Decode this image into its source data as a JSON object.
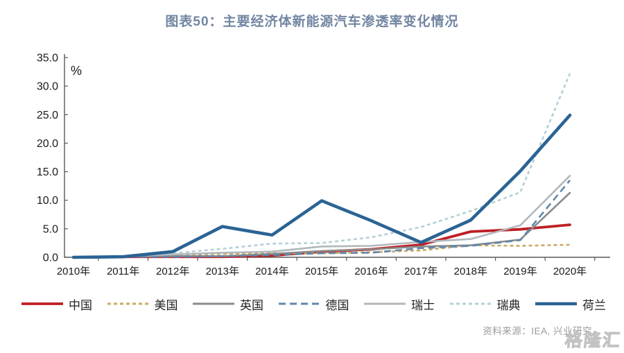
{
  "page": {
    "title": "图表50：主要经济体新能源汽车渗透率变化情况",
    "source_note": "资料来源：IEA, 兴业研究",
    "watermark": "格隆汇"
  },
  "colors": {
    "title": "#7286a2",
    "axis": "#595959",
    "tick_label": "#1a1a1a",
    "source_text": "#9b9b9b"
  },
  "chart_data": {
    "type": "line",
    "title": "图表50：主要经济体新能源汽车渗透率变化情况",
    "unit_label": "%",
    "categories": [
      "2010年",
      "2011年",
      "2012年",
      "2013年",
      "2014年",
      "2015年",
      "2016年",
      "2017年",
      "2018年",
      "2019年",
      "2020年"
    ],
    "ylim": [
      0,
      35
    ],
    "ytick_step": 5,
    "ytick_labels": [
      "0.0",
      "5.0",
      "10.0",
      "15.0",
      "20.0",
      "25.0",
      "30.0",
      "35.0"
    ],
    "grid": false,
    "legend_position": "bottom",
    "series": [
      {
        "id": "china",
        "name": "中国",
        "color": "#bf1e24",
        "style": "solid",
        "width": 3.8,
        "values": [
          0.0,
          0.1,
          0.1,
          0.1,
          0.3,
          1.0,
          1.4,
          2.2,
          4.5,
          4.9,
          5.7
        ]
      },
      {
        "id": "usa",
        "name": "美国",
        "color": "#c9aa63",
        "style": "short-dash",
        "width": 2.6,
        "values": [
          0.0,
          0.2,
          0.4,
          0.6,
          0.7,
          0.7,
          0.9,
          1.2,
          2.1,
          2.0,
          2.2
        ]
      },
      {
        "id": "uk",
        "name": "英国",
        "color": "#8b8b8b",
        "style": "solid",
        "width": 2.6,
        "values": [
          0.0,
          0.1,
          0.2,
          0.2,
          0.6,
          1.1,
          1.4,
          1.9,
          2.1,
          3.1,
          11.3
        ]
      },
      {
        "id": "germany",
        "name": "德国",
        "color": "#5f87ab",
        "style": "long-dash",
        "width": 2.6,
        "values": [
          0.0,
          0.1,
          0.1,
          0.2,
          0.4,
          0.7,
          0.8,
          1.6,
          2.0,
          3.0,
          13.5
        ]
      },
      {
        "id": "switzerland",
        "name": "瑞士",
        "color": "#b1b7bb",
        "style": "solid",
        "width": 2.6,
        "values": [
          0.0,
          0.2,
          0.5,
          0.8,
          1.0,
          1.9,
          2.0,
          2.7,
          3.2,
          5.6,
          14.3
        ]
      },
      {
        "id": "sweden",
        "name": "瑞典",
        "color": "#b4d0d6",
        "style": "short-dash",
        "width": 2.6,
        "values": [
          0.0,
          0.2,
          0.7,
          1.5,
          2.4,
          2.5,
          3.5,
          5.3,
          8.1,
          11.4,
          32.2
        ]
      },
      {
        "id": "netherlands",
        "name": "荷兰",
        "color": "#2b6394",
        "style": "solid",
        "width": 4.6,
        "values": [
          0.0,
          0.1,
          1.0,
          5.4,
          3.9,
          9.9,
          6.4,
          2.6,
          6.5,
          15.1,
          24.9
        ]
      }
    ]
  }
}
